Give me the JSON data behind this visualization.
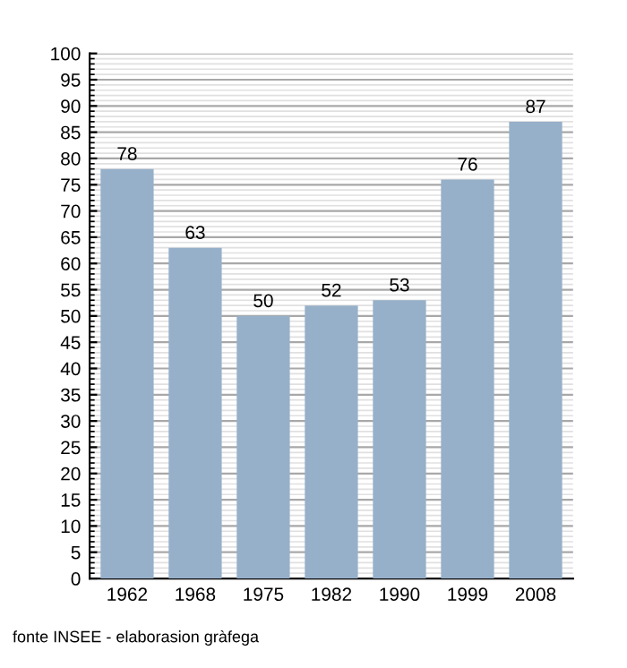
{
  "chart_data": {
    "type": "bar",
    "categories": [
      "1962",
      "1968",
      "1975",
      "1982",
      "1990",
      "1999",
      "2008"
    ],
    "values": [
      78,
      63,
      50,
      52,
      53,
      76,
      87
    ],
    "color": "#97b0c9",
    "ylim": [
      0,
      100
    ],
    "yticks": [
      0,
      5,
      10,
      15,
      20,
      25,
      30,
      35,
      40,
      45,
      50,
      55,
      60,
      65,
      70,
      75,
      80,
      85,
      90,
      95,
      100
    ],
    "grid": "y",
    "data_labels": true,
    "annotations": [
      "fonte INSEE - elaborasion gràfega"
    ]
  }
}
